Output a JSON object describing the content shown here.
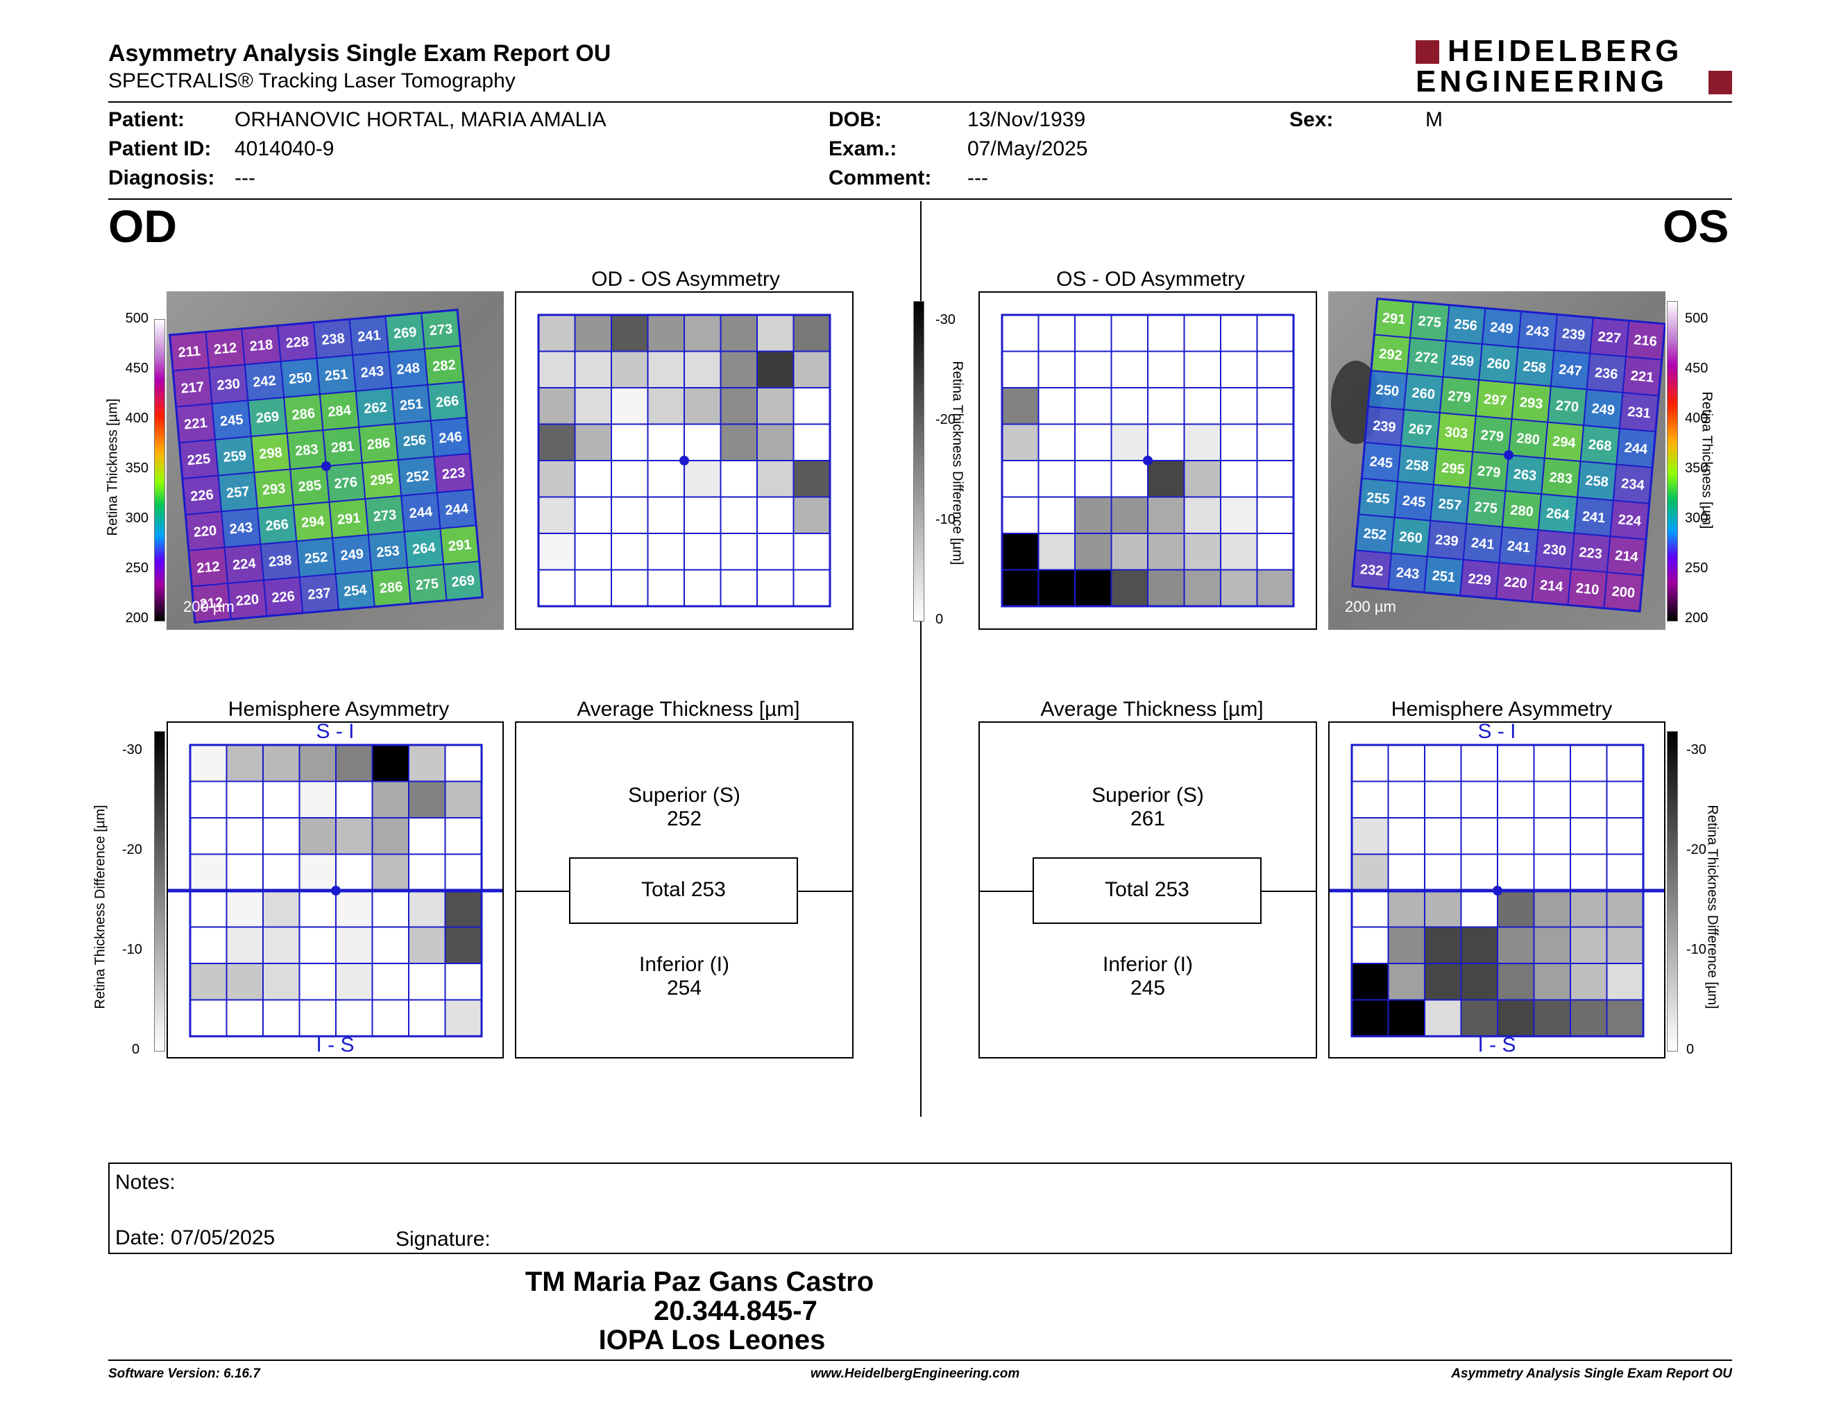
{
  "header": {
    "title": "Asymmetry Analysis Single Exam Report OU",
    "subtitle": "SPECTRALIS® Tracking Laser Tomography",
    "logo_line1": "HEIDELBERG",
    "logo_line2": "ENGINEERING"
  },
  "patient": {
    "name_label": "Patient:",
    "name": "ORHANOVIC HORTAL, MARIA AMALIA",
    "id_label": "Patient ID:",
    "id": "4014040-9",
    "diagnosis_label": "Diagnosis:",
    "diagnosis": "---",
    "dob_label": "DOB:",
    "dob": "13/Nov/1939",
    "exam_label": "Exam.:",
    "exam": "07/May/2025",
    "comment_label": "Comment:",
    "comment": "---",
    "sex_label": "Sex:",
    "sex": "M"
  },
  "od": {
    "eye": "OD",
    "asym_title": "OD - OS Asymmetry",
    "hemi_title": "Hemisphere Asymmetry",
    "avg_title": "Average Thickness [µm]",
    "superior_label": "Superior (S)",
    "superior": "252",
    "total_label": "Total 253",
    "inferior_label": "Inferior (I)",
    "inferior": "254",
    "scale_label": "200 µm",
    "si": "S - I",
    "is": "I - S",
    "thickness": [
      [
        211,
        212,
        218,
        228,
        238,
        241,
        269,
        273
      ],
      [
        217,
        230,
        242,
        250,
        251,
        243,
        248,
        282
      ],
      [
        221,
        245,
        269,
        286,
        284,
        262,
        251,
        266
      ],
      [
        225,
        259,
        298,
        283,
        281,
        286,
        256,
        246
      ],
      [
        226,
        257,
        293,
        285,
        276,
        295,
        252,
        223
      ],
      [
        220,
        243,
        266,
        294,
        291,
        273,
        244,
        244
      ],
      [
        212,
        224,
        238,
        252,
        249,
        253,
        264,
        291
      ],
      [
        212,
        220,
        226,
        237,
        254,
        286,
        275,
        269
      ]
    ],
    "asym_gray": [
      [
        200,
        150,
        90,
        150,
        170,
        140,
        210,
        120
      ],
      [
        220,
        220,
        200,
        220,
        220,
        140,
        60,
        190
      ],
      [
        180,
        220,
        245,
        210,
        190,
        140,
        190,
        255
      ],
      [
        100,
        180,
        255,
        255,
        255,
        140,
        170,
        255
      ],
      [
        200,
        255,
        255,
        255,
        235,
        255,
        210,
        90
      ],
      [
        225,
        255,
        255,
        255,
        255,
        255,
        255,
        180
      ],
      [
        245,
        255,
        255,
        255,
        255,
        255,
        255,
        255
      ],
      [
        255,
        255,
        255,
        255,
        255,
        255,
        255,
        255
      ]
    ],
    "hemi_gray": [
      [
        245,
        190,
        185,
        160,
        130,
        0,
        200,
        255
      ],
      [
        255,
        255,
        255,
        245,
        255,
        170,
        130,
        190
      ],
      [
        255,
        255,
        255,
        180,
        190,
        170,
        255,
        255
      ],
      [
        245,
        255,
        255,
        245,
        255,
        190,
        255,
        255
      ],
      [
        255,
        245,
        220,
        255,
        245,
        255,
        225,
        80
      ],
      [
        255,
        235,
        230,
        255,
        240,
        255,
        200,
        80
      ],
      [
        200,
        200,
        220,
        255,
        235,
        255,
        255,
        255
      ],
      [
        255,
        255,
        255,
        255,
        255,
        255,
        255,
        225
      ]
    ]
  },
  "os": {
    "eye": "OS",
    "asym_title": "OS - OD Asymmetry",
    "hemi_title": "Hemisphere Asymmetry",
    "avg_title": "Average Thickness [µm]",
    "superior_label": "Superior (S)",
    "superior": "261",
    "total_label": "Total 253",
    "inferior_label": "Inferior (I)",
    "inferior": "245",
    "scale_label": "200 µm",
    "si": "S - I",
    "is": "I - S",
    "thickness": [
      [
        291,
        275,
        256,
        249,
        243,
        239,
        227,
        216
      ],
      [
        292,
        272,
        259,
        260,
        258,
        247,
        236,
        221
      ],
      [
        250,
        260,
        279,
        297,
        293,
        270,
        249,
        231
      ],
      [
        239,
        267,
        303,
        279,
        280,
        294,
        268,
        244
      ],
      [
        245,
        258,
        295,
        279,
        263,
        283,
        258,
        234
      ],
      [
        255,
        245,
        257,
        275,
        280,
        264,
        241,
        224
      ],
      [
        252,
        260,
        239,
        241,
        241,
        230,
        223,
        214
      ],
      [
        232,
        243,
        251,
        229,
        220,
        214,
        210,
        200
      ]
    ],
    "asym_gray": [
      [
        255,
        255,
        255,
        255,
        255,
        255,
        255,
        255
      ],
      [
        255,
        255,
        255,
        255,
        255,
        255,
        255,
        255
      ],
      [
        130,
        255,
        255,
        255,
        255,
        255,
        255,
        255
      ],
      [
        200,
        255,
        255,
        235,
        255,
        235,
        255,
        255
      ],
      [
        255,
        255,
        255,
        255,
        70,
        190,
        255,
        255
      ],
      [
        255,
        255,
        150,
        150,
        170,
        225,
        240,
        255
      ],
      [
        0,
        220,
        150,
        190,
        180,
        200,
        225,
        255
      ],
      [
        0,
        0,
        0,
        80,
        140,
        160,
        185,
        170
      ]
    ],
    "hemi_gray": [
      [
        255,
        255,
        255,
        255,
        255,
        255,
        255,
        255
      ],
      [
        255,
        255,
        255,
        255,
        255,
        255,
        255,
        255
      ],
      [
        225,
        255,
        255,
        255,
        255,
        255,
        255,
        255
      ],
      [
        205,
        255,
        255,
        255,
        255,
        255,
        255,
        255
      ],
      [
        255,
        180,
        180,
        255,
        110,
        160,
        180,
        180
      ],
      [
        255,
        140,
        70,
        70,
        140,
        160,
        190,
        190
      ],
      [
        0,
        160,
        70,
        70,
        120,
        160,
        190,
        220
      ],
      [
        0,
        0,
        220,
        90,
        70,
        90,
        110,
        120
      ]
    ]
  },
  "colorbar": {
    "thickness_label": "Retina Thickness [µm]",
    "thickness_ticks": [
      "500",
      "450",
      "400",
      "350",
      "300",
      "250",
      "200"
    ],
    "diff_label": "Retina Thickness Difference [µm]",
    "diff_ticks": [
      "-30",
      "-20",
      "-10",
      "0"
    ]
  },
  "notes": {
    "label": "Notes:",
    "date_label": "Date: 07/05/2025",
    "signature_label": "Signature:"
  },
  "signature_block": {
    "line1": "TM Maria Paz Gans Castro",
    "line2": "20.344.845-7",
    "line3": "IOPA Los Leones"
  },
  "footer": {
    "version": "Software Version: 6.16.7",
    "url": "www.HeidelbergEngineering.com",
    "report": "Asymmetry Analysis Single Exam Report OU"
  }
}
